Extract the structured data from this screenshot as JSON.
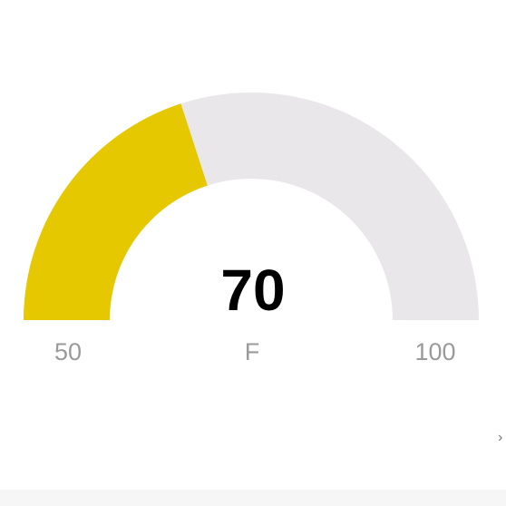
{
  "gauge": {
    "value": 70,
    "value_label": "70",
    "min": 50,
    "max": 100,
    "min_label": "50",
    "max_label": "100",
    "unit_label": "F",
    "fill_color": "#e6c800",
    "track_color": "#e9e7e9",
    "fraction_filled": 0.4
  }
}
